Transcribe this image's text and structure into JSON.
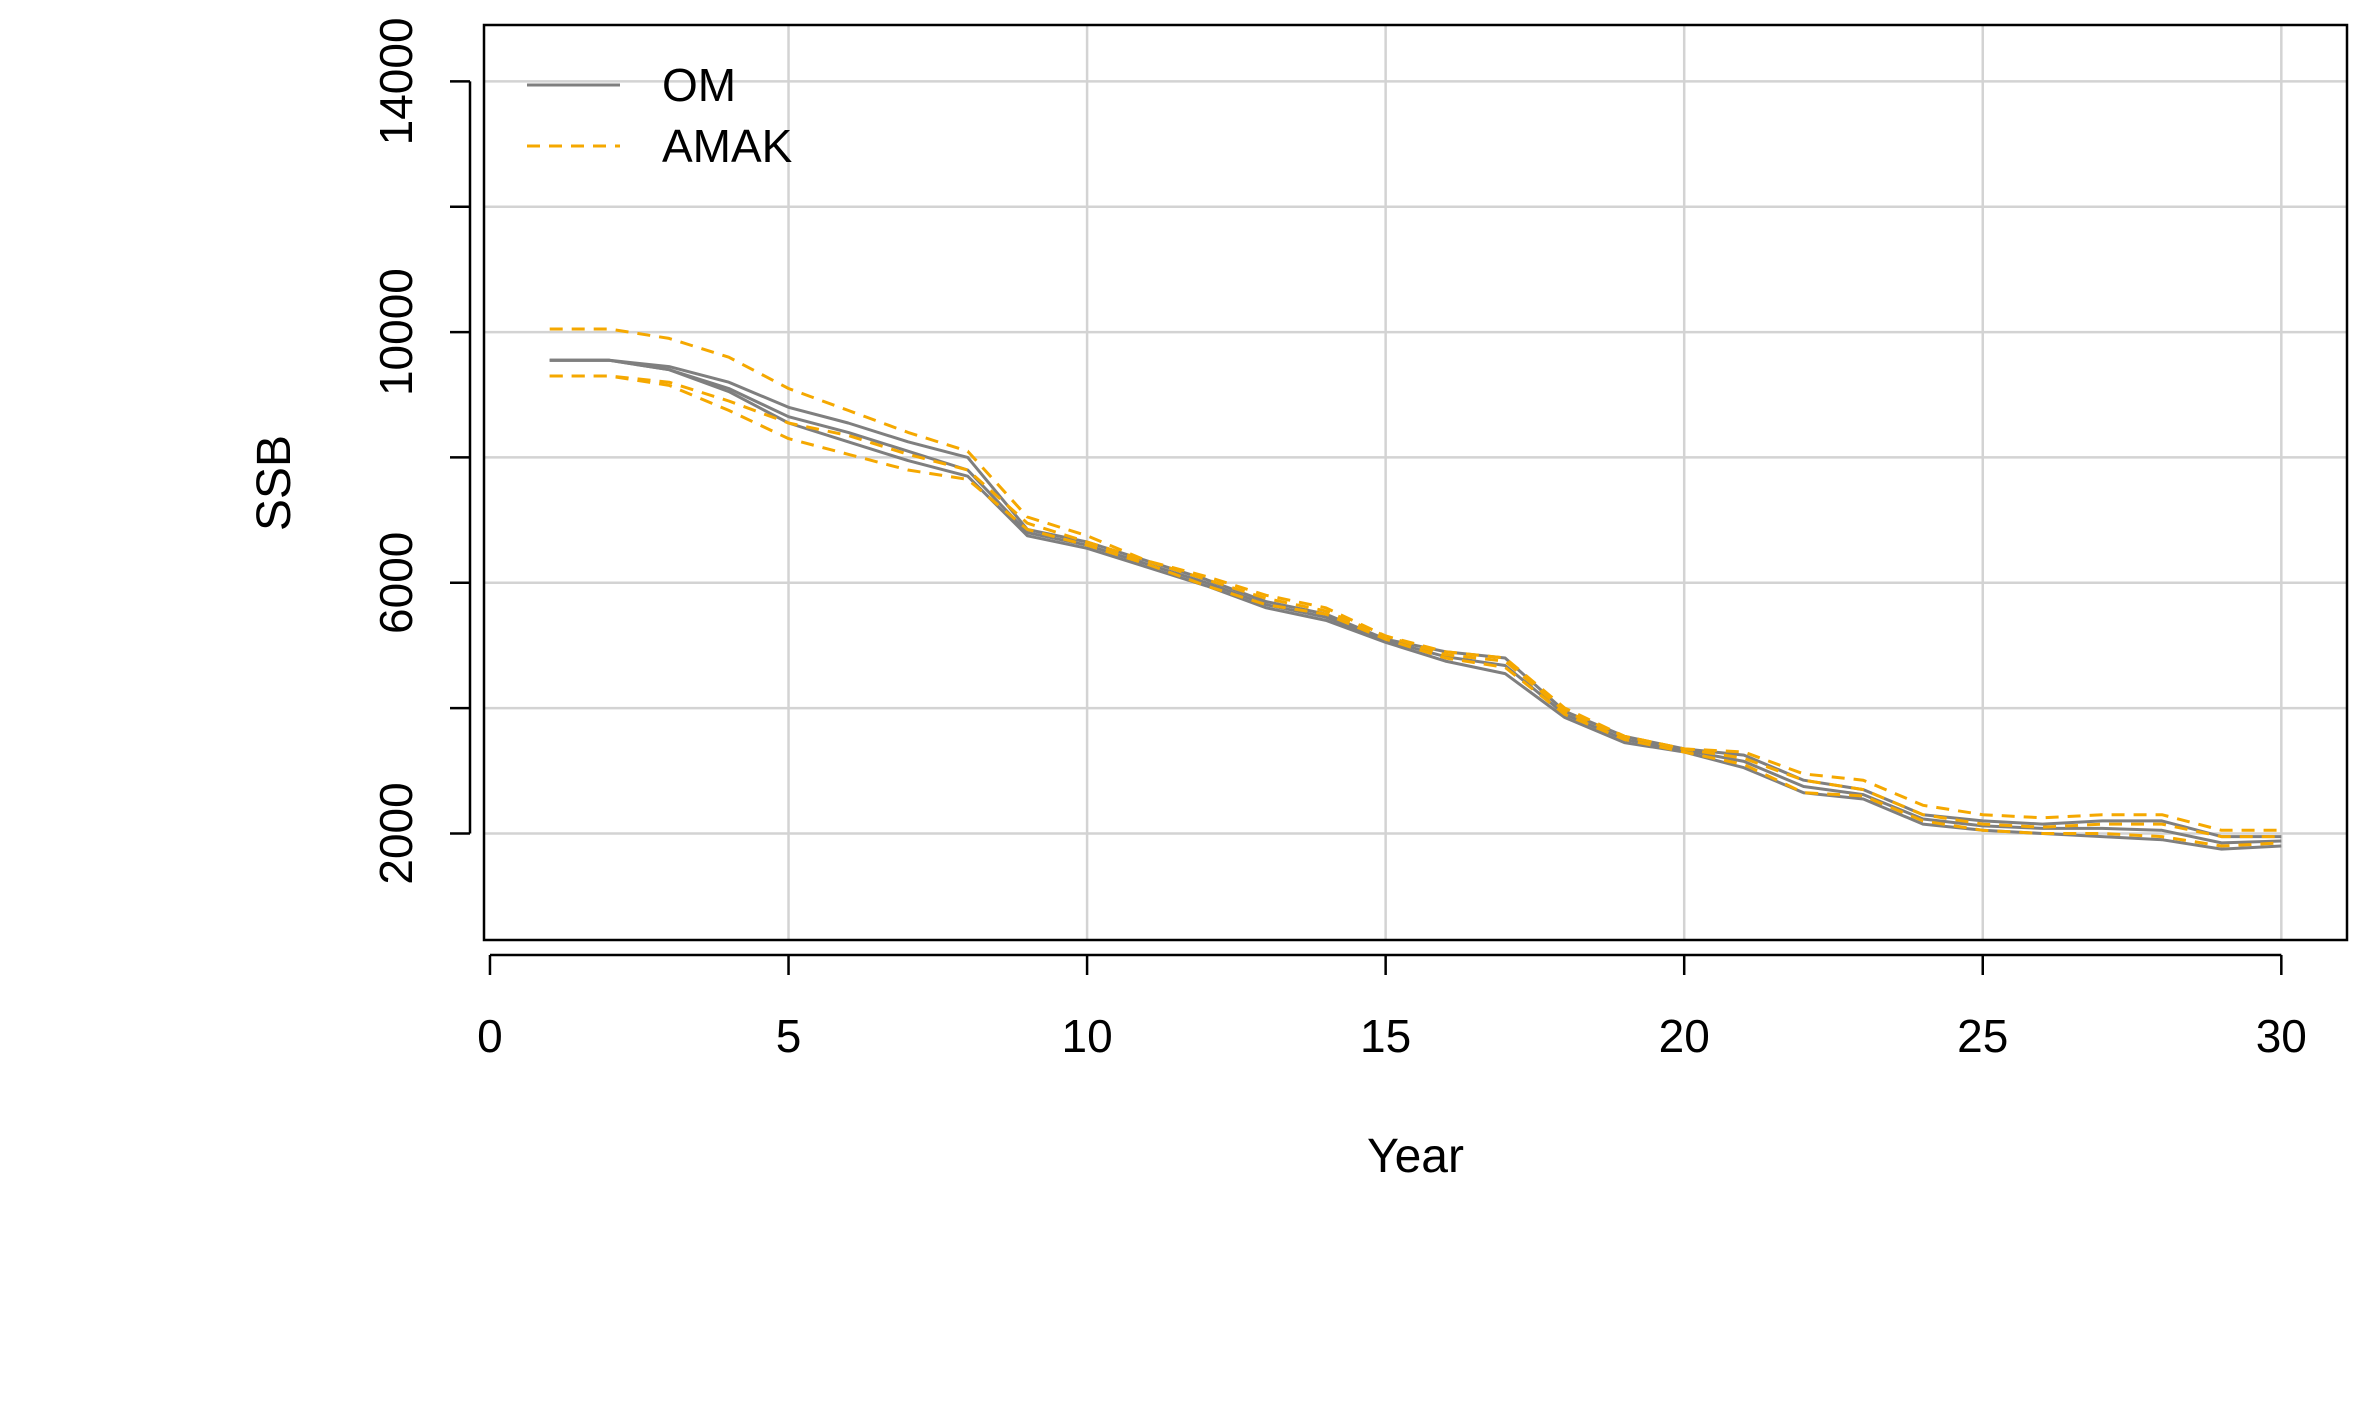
{
  "chart_data": {
    "type": "line",
    "xlabel": "Year",
    "ylabel": "SSB",
    "xlim": [
      -0.1,
      31.1
    ],
    "ylim": [
      300,
      14900
    ],
    "xticks": [
      0,
      5,
      10,
      15,
      20,
      25,
      30
    ],
    "yticks": [
      2000,
      6000,
      10000,
      14000
    ],
    "ygrid": [
      2000,
      4000,
      6000,
      8000,
      10000,
      12000,
      14000
    ],
    "grid": true,
    "legend": {
      "position": "top-left",
      "entries": [
        {
          "label": "OM",
          "color": "#7f7f7f",
          "dash": "solid"
        },
        {
          "label": "AMAK",
          "color": "#f5a800",
          "dash": "dashed"
        }
      ]
    },
    "series": [
      {
        "group": "OM",
        "x": [
          1,
          2,
          3,
          4,
          5,
          6,
          7,
          8,
          9,
          10,
          11,
          12,
          13,
          14,
          15,
          16,
          17,
          18,
          19,
          20,
          21,
          22,
          23,
          24,
          25,
          26,
          27,
          28,
          29,
          30
        ],
        "values": [
          9550,
          9550,
          9400,
          9050,
          8550,
          8250,
          7950,
          7700,
          6750,
          6550,
          6250,
          5950,
          5600,
          5400,
          5050,
          4750,
          4550,
          3850,
          3450,
          3300,
          3050,
          2650,
          2550,
          2150,
          2050,
          2000,
          1950,
          1900,
          1750,
          1800
        ]
      },
      {
        "group": "OM",
        "x": [
          1,
          2,
          3,
          4,
          5,
          6,
          7,
          8,
          9,
          10,
          11,
          12,
          13,
          14,
          15,
          16,
          17,
          18,
          19,
          20,
          21,
          22,
          23,
          24,
          25,
          26,
          27,
          28,
          29,
          30
        ],
        "values": [
          9550,
          9550,
          9450,
          9200,
          8800,
          8550,
          8250,
          8000,
          6850,
          6650,
          6350,
          6050,
          5700,
          5500,
          5100,
          4900,
          4800,
          3950,
          3550,
          3350,
          3250,
          2850,
          2700,
          2300,
          2200,
          2150,
          2200,
          2200,
          1950,
          1950
        ]
      },
      {
        "group": "OM",
        "x": [
          1,
          2,
          3,
          4,
          5,
          6,
          7,
          8,
          9,
          10,
          11,
          12,
          13,
          14,
          15,
          16,
          17,
          18,
          19,
          20,
          21,
          22,
          23,
          24,
          25,
          26,
          27,
          28,
          29,
          30
        ],
        "values": [
          9550,
          9550,
          9400,
          9100,
          8650,
          8400,
          8100,
          7800,
          6800,
          6600,
          6300,
          6000,
          5650,
          5450,
          5080,
          4820,
          4680,
          3900,
          3500,
          3330,
          3150,
          2750,
          2620,
          2230,
          2120,
          2080,
          2080,
          2050,
          1850,
          1880
        ]
      },
      {
        "group": "AMAK",
        "x": [
          1,
          2,
          3,
          4,
          5,
          6,
          7,
          8,
          9,
          10,
          11,
          12,
          13,
          14,
          15,
          16,
          17,
          18,
          19,
          20,
          21,
          22,
          23,
          24,
          25,
          26,
          27,
          28,
          29,
          30
        ],
        "values": [
          10050,
          10050,
          9900,
          9600,
          9100,
          8750,
          8400,
          8100,
          7050,
          6750,
          6350,
          6100,
          5800,
          5600,
          5150,
          4900,
          4800,
          4000,
          3550,
          3350,
          3300,
          2950,
          2850,
          2450,
          2300,
          2250,
          2300,
          2300,
          2050,
          2050
        ]
      },
      {
        "group": "AMAK",
        "x": [
          1,
          2,
          3,
          4,
          5,
          6,
          7,
          8,
          9,
          10,
          11,
          12,
          13,
          14,
          15,
          16,
          17,
          18,
          19,
          20,
          21,
          22,
          23,
          24,
          25,
          26,
          27,
          28,
          29,
          30
        ],
        "values": [
          9300,
          9300,
          9150,
          8750,
          8300,
          8050,
          7800,
          7650,
          6850,
          6600,
          6300,
          5950,
          5650,
          5500,
          5100,
          4800,
          4650,
          3900,
          3500,
          3300,
          3100,
          2650,
          2600,
          2200,
          2050,
          2000,
          2000,
          1950,
          1800,
          1850
        ]
      },
      {
        "group": "AMAK",
        "x": [
          1,
          2,
          3,
          4,
          5,
          6,
          7,
          8,
          9,
          10,
          11,
          12,
          13,
          14,
          15,
          16,
          17,
          18,
          19,
          20,
          21,
          22,
          23,
          24,
          25,
          26,
          27,
          28,
          29,
          30
        ],
        "values": [
          9300,
          9300,
          9200,
          8900,
          8550,
          8350,
          8050,
          7800,
          6950,
          6650,
          6350,
          6050,
          5750,
          5550,
          5150,
          4850,
          4750,
          3950,
          3550,
          3350,
          3200,
          2850,
          2700,
          2300,
          2150,
          2100,
          2150,
          2150,
          1950,
          1950
        ]
      }
    ]
  }
}
